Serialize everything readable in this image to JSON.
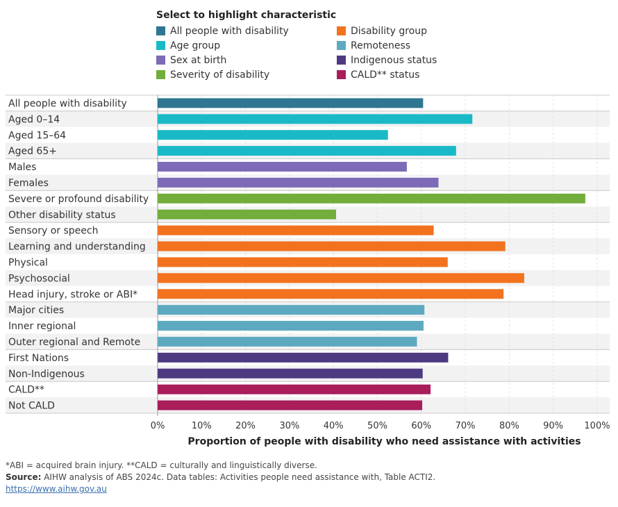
{
  "legend": {
    "title": "Select to highlight characteristic",
    "items": [
      {
        "label": "All people with disability",
        "color": "#2e7691",
        "icon": "square-swatch"
      },
      {
        "label": "Age group",
        "color": "#1ab9c8",
        "icon": "square-swatch"
      },
      {
        "label": "Sex at birth",
        "color": "#7d6bb8",
        "icon": "square-swatch"
      },
      {
        "label": "Severity of disability",
        "color": "#73ad3c",
        "icon": "square-swatch"
      },
      {
        "label": "Disability group",
        "color": "#f2721e",
        "icon": "square-swatch"
      },
      {
        "label": "Remoteness",
        "color": "#5daac0",
        "icon": "square-swatch"
      },
      {
        "label": "Indigenous status",
        "color": "#4e3a80",
        "icon": "square-swatch"
      },
      {
        "label": "CALD** status",
        "color": "#a81d5a",
        "icon": "square-swatch"
      }
    ]
  },
  "chart_data": {
    "type": "bar",
    "orientation": "horizontal",
    "xlabel": "Proportion of people with disability who need assistance with activities",
    "ylabel": "",
    "xlim": [
      0,
      100
    ],
    "xticks": [
      "0%",
      "10%",
      "20%",
      "30%",
      "40%",
      "50%",
      "60%",
      "70%",
      "80%",
      "90%",
      "100%"
    ],
    "grid": true,
    "legend_position": "top",
    "groups": [
      {
        "name": "All people with disability",
        "color": "#2e7691",
        "bars": [
          {
            "label": "All people with disability",
            "value": 60.4
          }
        ]
      },
      {
        "name": "Age group",
        "color": "#1ab9c8",
        "bars": [
          {
            "label": "Aged 0–14",
            "value": 71.6
          },
          {
            "label": "Aged 15–64",
            "value": 52.4
          },
          {
            "label": "Aged 65+",
            "value": 67.9
          }
        ]
      },
      {
        "name": "Sex at birth",
        "color": "#7d6bb8",
        "bars": [
          {
            "label": "Males",
            "value": 56.7
          },
          {
            "label": "Females",
            "value": 63.9
          }
        ]
      },
      {
        "name": "Severity of disability",
        "color": "#73ad3c",
        "bars": [
          {
            "label": "Severe or profound disability",
            "value": 97.3
          },
          {
            "label": "Other disability status",
            "value": 40.6
          }
        ]
      },
      {
        "name": "Disability group",
        "color": "#f2721e",
        "bars": [
          {
            "label": "Sensory or speech",
            "value": 62.8
          },
          {
            "label": "Learning and understanding",
            "value": 79.1
          },
          {
            "label": "Physical",
            "value": 66.0
          },
          {
            "label": "Psychosocial",
            "value": 83.4
          },
          {
            "label": "Head injury, stroke or ABI*",
            "value": 78.7
          }
        ]
      },
      {
        "name": "Remoteness",
        "color": "#5daac0",
        "bars": [
          {
            "label": "Major cities",
            "value": 60.7
          },
          {
            "label": "Inner regional",
            "value": 60.5
          },
          {
            "label": "Outer regional and Remote",
            "value": 59.0
          }
        ]
      },
      {
        "name": "Indigenous status",
        "color": "#4e3a80",
        "bars": [
          {
            "label": "First Nations",
            "value": 66.1
          },
          {
            "label": "Non-Indigenous",
            "value": 60.3
          }
        ]
      },
      {
        "name": "CALD** status",
        "color": "#a81d5a",
        "bars": [
          {
            "label": "CALD**",
            "value": 62.1
          },
          {
            "label": "Not CALD",
            "value": 60.2
          }
        ]
      }
    ]
  },
  "footer": {
    "note": "*ABI = acquired brain injury. **CALD = culturally and linguistically diverse.",
    "source_label": "Source:",
    "source_text": " AIHW analysis of ABS 2024c. Data tables: Activities people need assistance with, Table ACTI2.",
    "link": "https://www.aihw.gov.au"
  }
}
